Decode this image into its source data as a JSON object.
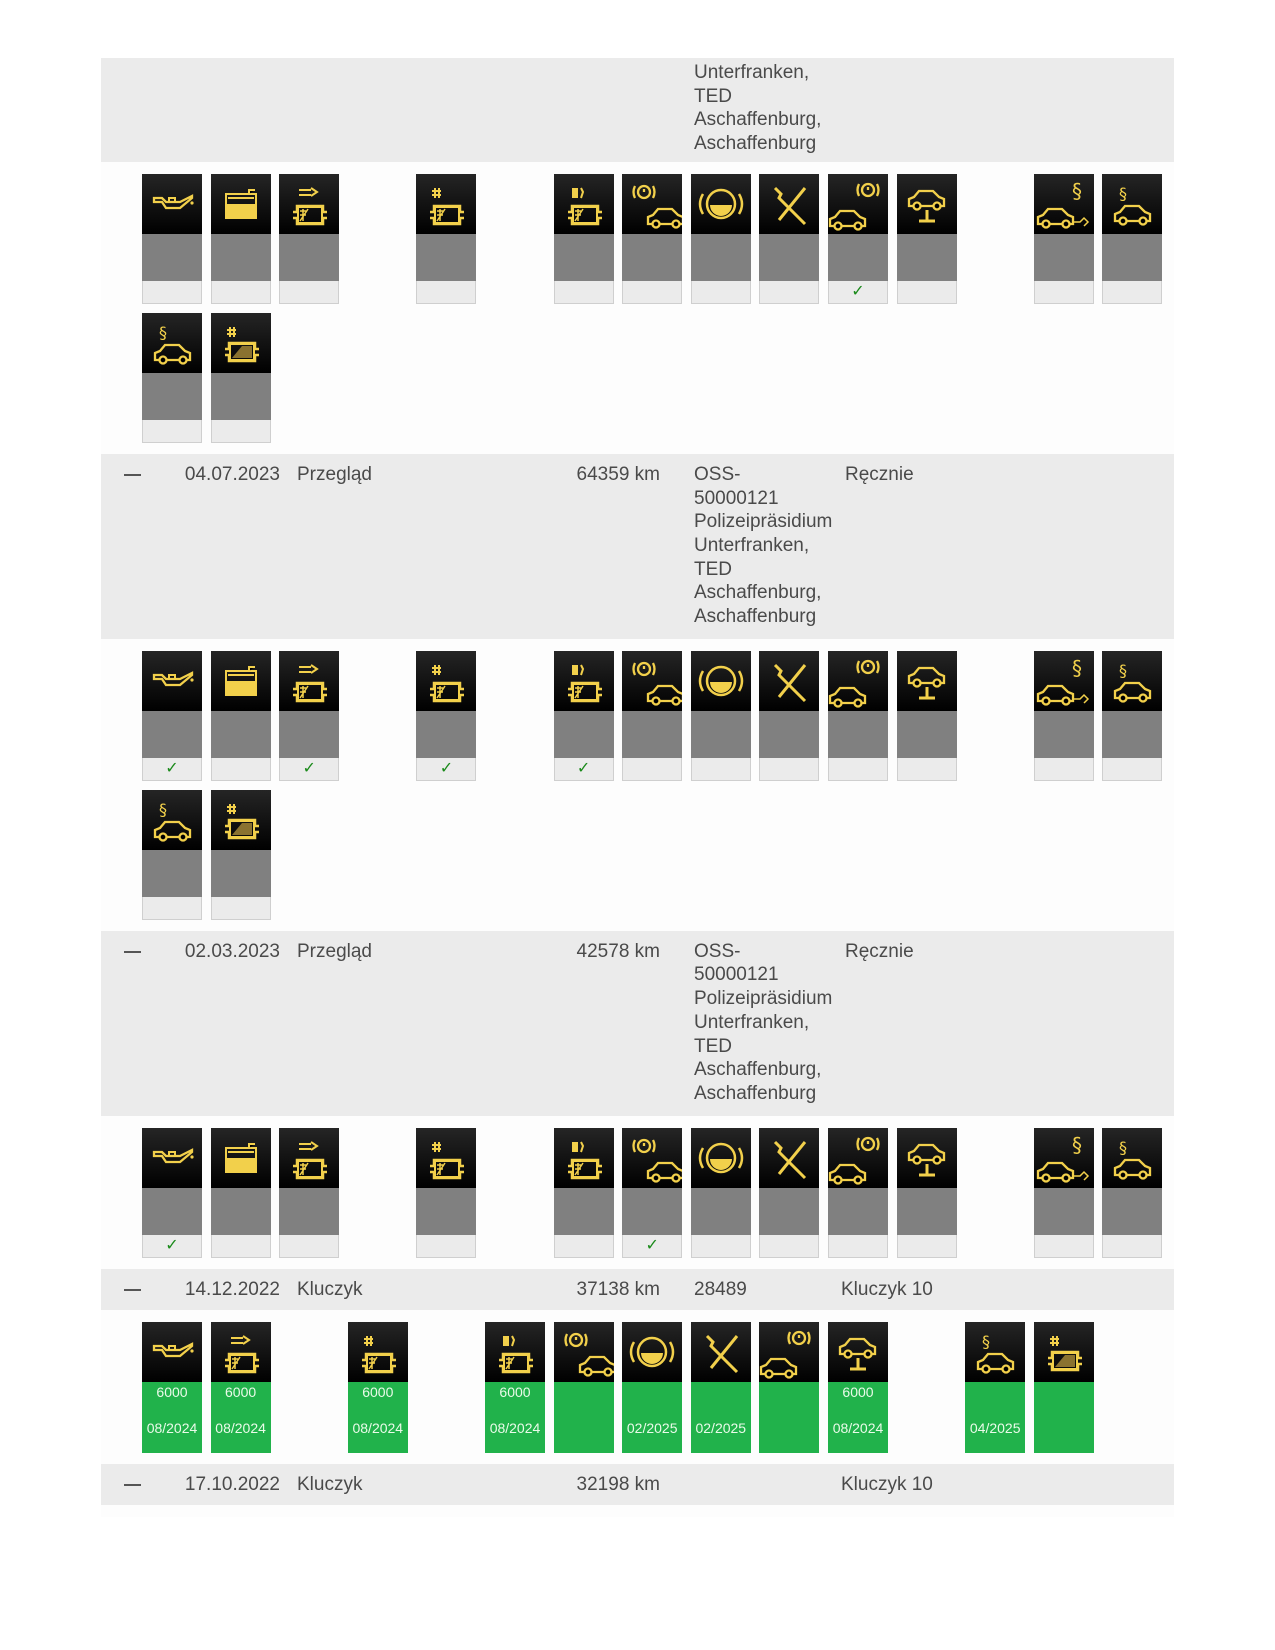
{
  "colors": {
    "band": "#ebebeb",
    "icon": "#f2d04b",
    "tile_gray": "#808080",
    "ok_green": "#21b24b",
    "check": "#1a8a1a"
  },
  "check_symbol": "✓",
  "entries": [
    {
      "kind": "inspection",
      "partial": true,
      "address_lines": [
        "Unterfranken,",
        "TED",
        "Aschaffenburg,",
        "Aschaffenburg"
      ],
      "tiles_row1": [
        {
          "icon": "oil-can-icon",
          "checked": false
        },
        {
          "icon": "oil-level-icon",
          "checked": false
        },
        {
          "icon": "particle-filter-exhaust-icon",
          "checked": false
        },
        {
          "icon": "particle-filter-hash-icon",
          "checked": false
        },
        {
          "icon": "particle-filter-fuel-icon",
          "checked": false
        },
        {
          "icon": "brake-car-icon",
          "checked": false
        },
        {
          "icon": "brake-pad-icon",
          "checked": false
        },
        {
          "icon": "tools-icon",
          "checked": false
        },
        {
          "icon": "car-brake-icon",
          "checked": true
        },
        {
          "icon": "car-lift-icon",
          "checked": false
        },
        {
          "icon": "car-emissions-inspection-icon",
          "checked": false
        },
        {
          "icon": "car-inspection-icon",
          "checked": false
        }
      ],
      "tiles_row2": [
        {
          "icon": "car-inspection-icon",
          "checked": false
        },
        {
          "icon": "particle-filter-battery-icon",
          "checked": false
        }
      ]
    },
    {
      "kind": "inspection",
      "collapse": "—",
      "date": "04.07.2023",
      "type": "Przegląd",
      "km": "64359 km",
      "address_lines": [
        "OSS-",
        "50000121",
        "Polizeipräsidium",
        "Unterfranken,",
        "TED",
        "Aschaffenburg,",
        "Aschaffenburg"
      ],
      "source": "Ręcznie",
      "tiles_row1": [
        {
          "icon": "oil-can-icon",
          "checked": true
        },
        {
          "icon": "oil-level-icon",
          "checked": false
        },
        {
          "icon": "particle-filter-exhaust-icon",
          "checked": true
        },
        {
          "icon": "particle-filter-hash-icon",
          "checked": true
        },
        {
          "icon": "particle-filter-fuel-icon",
          "checked": true
        },
        {
          "icon": "brake-car-icon",
          "checked": false
        },
        {
          "icon": "brake-pad-icon",
          "checked": false
        },
        {
          "icon": "tools-icon",
          "checked": false
        },
        {
          "icon": "car-brake-icon",
          "checked": false
        },
        {
          "icon": "car-lift-icon",
          "checked": false
        },
        {
          "icon": "car-emissions-inspection-icon",
          "checked": false
        },
        {
          "icon": "car-inspection-icon",
          "checked": false
        }
      ],
      "tiles_row2": [
        {
          "icon": "car-inspection-icon",
          "checked": false
        },
        {
          "icon": "particle-filter-battery-icon",
          "checked": false
        }
      ]
    },
    {
      "kind": "inspection",
      "collapse": "—",
      "date": "02.03.2023",
      "type": "Przegląd",
      "km": "42578 km",
      "address_lines": [
        "OSS-",
        "50000121",
        "Polizeipräsidium",
        "Unterfranken,",
        "TED",
        "Aschaffenburg,",
        "Aschaffenburg"
      ],
      "source": "Ręcznie",
      "tiles_row1": [
        {
          "icon": "oil-can-icon",
          "checked": true
        },
        {
          "icon": "oil-level-icon",
          "checked": false
        },
        {
          "icon": "particle-filter-exhaust-icon",
          "checked": false
        },
        {
          "icon": "particle-filter-hash-icon",
          "checked": false
        },
        {
          "icon": "particle-filter-fuel-icon",
          "checked": false
        },
        {
          "icon": "brake-car-icon",
          "checked": true
        },
        {
          "icon": "brake-pad-icon",
          "checked": false
        },
        {
          "icon": "tools-icon",
          "checked": false
        },
        {
          "icon": "car-brake-icon",
          "checked": false
        },
        {
          "icon": "car-lift-icon",
          "checked": false
        },
        {
          "icon": "car-emissions-inspection-icon",
          "checked": false
        },
        {
          "icon": "car-inspection-icon",
          "checked": false
        }
      ],
      "tiles_row2": []
    },
    {
      "kind": "key",
      "collapse": "—",
      "date": "14.12.2022",
      "type": "Kluczyk",
      "km": "37138 km",
      "number": "28489",
      "source": "Kluczyk 10",
      "tiles": [
        {
          "icon": "oil-can-icon",
          "value": "6000",
          "due": "08/2024"
        },
        {
          "icon": "particle-filter-exhaust-icon",
          "value": "6000",
          "due": "08/2024"
        },
        {
          "icon": "particle-filter-hash-icon",
          "value": "6000",
          "due": "08/2024"
        },
        {
          "icon": "particle-filter-fuel-icon",
          "value": "6000",
          "due": "08/2024"
        },
        {
          "icon": "brake-car-icon",
          "value": "",
          "due": ""
        },
        {
          "icon": "brake-pad-icon",
          "value": "",
          "due": "02/2025"
        },
        {
          "icon": "tools-icon",
          "value": "",
          "due": "02/2025"
        },
        {
          "icon": "car-brake-icon",
          "value": "",
          "due": ""
        },
        {
          "icon": "car-lift-icon",
          "value": "6000",
          "due": "08/2024"
        },
        {
          "icon": "car-inspection-icon",
          "value": "",
          "due": "04/2025"
        },
        {
          "icon": "particle-filter-battery-icon",
          "value": "",
          "due": ""
        }
      ]
    },
    {
      "kind": "key",
      "collapse": "—",
      "date": "17.10.2022",
      "type": "Kluczyk",
      "km": "32198 km",
      "number": "",
      "source": "Kluczyk 10",
      "tiles": []
    }
  ]
}
